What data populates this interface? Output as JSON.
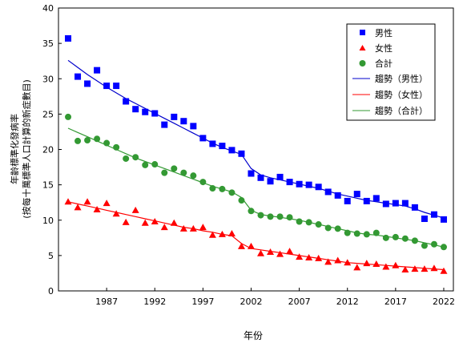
{
  "chart_data": {
    "type": "scatter",
    "xlabel": "年份",
    "ylabel_lines": [
      "年齡標準化發病率",
      "(按每十萬標準人口計算的新症數目)"
    ],
    "xlim": [
      1982,
      2023
    ],
    "ylim": [
      0,
      40
    ],
    "x_ticks": [
      "1987",
      "1992",
      "1997",
      "2002",
      "2007",
      "2012",
      "2017",
      "2022"
    ],
    "y_ticks": [
      "0",
      "5",
      "10",
      "15",
      "20",
      "25",
      "30",
      "35",
      "40"
    ],
    "grid": false,
    "legend_position": "top-right",
    "x": [
      1983,
      1984,
      1985,
      1986,
      1987,
      1988,
      1989,
      1990,
      1991,
      1992,
      1993,
      1994,
      1995,
      1996,
      1997,
      1998,
      1999,
      2000,
      2001,
      2002,
      2003,
      2004,
      2005,
      2006,
      2007,
      2008,
      2009,
      2010,
      2011,
      2012,
      2013,
      2014,
      2015,
      2016,
      2017,
      2018,
      2019,
      2020,
      2021,
      2022
    ],
    "series": [
      {
        "name": "男性",
        "marker": "square",
        "color": "#0000ff",
        "values": [
          35.7,
          30.3,
          29.3,
          31.2,
          29.0,
          29.0,
          26.8,
          25.7,
          25.3,
          25.1,
          23.5,
          24.6,
          24.0,
          23.3,
          21.6,
          20.8,
          20.5,
          19.9,
          19.4,
          16.6,
          16.0,
          15.5,
          16.1,
          15.4,
          15.1,
          15.0,
          14.7,
          14.0,
          13.5,
          12.7,
          13.7,
          12.7,
          13.1,
          12.3,
          12.4,
          12.4,
          11.8,
          10.2,
          10.8,
          10.1
        ]
      },
      {
        "name": "女性",
        "marker": "triangle",
        "color": "#ff0000",
        "values": [
          12.6,
          11.8,
          12.6,
          11.5,
          12.4,
          10.9,
          9.7,
          11.4,
          9.6,
          9.8,
          9.0,
          9.6,
          8.8,
          8.8,
          9.0,
          7.9,
          8.0,
          8.1,
          6.3,
          6.3,
          5.3,
          5.5,
          5.2,
          5.6,
          4.8,
          4.7,
          4.6,
          4.1,
          4.3,
          4.0,
          3.3,
          3.9,
          3.8,
          3.4,
          3.6,
          3.0,
          3.1,
          3.1,
          3.2,
          2.8
        ]
      },
      {
        "name": "合計",
        "marker": "circle",
        "color": "#339933",
        "values": [
          24.6,
          21.2,
          21.3,
          21.5,
          20.9,
          20.3,
          18.7,
          18.9,
          17.8,
          17.9,
          16.7,
          17.3,
          16.7,
          16.3,
          15.4,
          14.5,
          14.4,
          13.9,
          12.8,
          11.3,
          10.7,
          10.5,
          10.5,
          10.4,
          9.8,
          9.7,
          9.4,
          8.9,
          8.8,
          8.2,
          8.1,
          8.0,
          8.2,
          7.5,
          7.6,
          7.4,
          7.1,
          6.4,
          6.6,
          6.2
        ]
      }
    ],
    "trends": [
      {
        "name": "趨勢（男性）",
        "color": "#0000cc",
        "values": [
          32.6,
          31.6,
          30.6,
          29.7,
          28.8,
          28.0,
          27.2,
          26.5,
          25.8,
          25.1,
          24.4,
          23.7,
          23.0,
          22.3,
          21.6,
          20.9,
          20.3,
          19.8,
          19.3,
          17.3,
          16.4,
          16.0,
          15.7,
          15.4,
          15.1,
          14.8,
          14.5,
          14.1,
          13.7,
          13.4,
          13.1,
          12.8,
          12.6,
          12.4,
          12.2,
          12.0,
          11.6,
          11.1,
          10.7,
          10.3
        ]
      },
      {
        "name": "趨勢（女性）",
        "color": "#ff0000",
        "values": [
          12.6,
          12.3,
          12.0,
          11.7,
          11.4,
          11.1,
          10.8,
          10.5,
          10.2,
          9.9,
          9.6,
          9.3,
          9.0,
          8.8,
          8.5,
          8.3,
          8.0,
          7.8,
          6.7,
          6.0,
          5.8,
          5.6,
          5.4,
          5.2,
          5.0,
          4.8,
          4.6,
          4.4,
          4.2,
          4.0,
          3.9,
          3.8,
          3.7,
          3.6,
          3.5,
          3.4,
          3.3,
          3.2,
          3.1,
          3.0
        ]
      },
      {
        "name": "趨勢（合計）",
        "color": "#339933",
        "values": [
          23.0,
          22.4,
          21.8,
          21.2,
          20.6,
          20.0,
          19.4,
          18.8,
          18.3,
          17.8,
          17.3,
          16.8,
          16.3,
          15.8,
          15.3,
          14.8,
          14.4,
          14.0,
          13.2,
          11.4,
          10.8,
          10.6,
          10.4,
          10.2,
          10.0,
          9.7,
          9.4,
          9.1,
          8.8,
          8.5,
          8.2,
          8.0,
          7.9,
          7.7,
          7.5,
          7.3,
          7.1,
          6.8,
          6.5,
          6.2
        ]
      }
    ]
  }
}
